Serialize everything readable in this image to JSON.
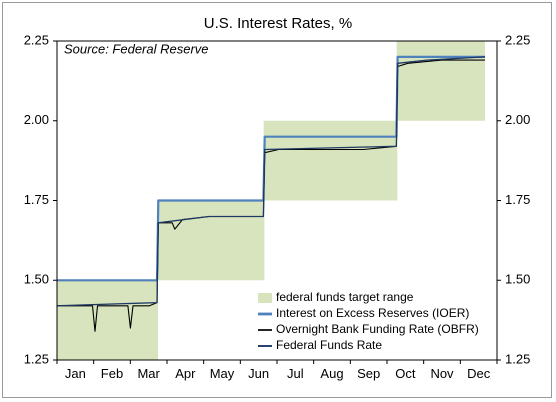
{
  "chart_data": {
    "type": "line",
    "title": "U.S. Interest Rates, %",
    "annotation": "Source: Federal Reserve",
    "xlabel": "",
    "ylabel": "",
    "ylim": [
      1.25,
      2.25
    ],
    "y_ticks": [
      "1.25",
      "1.50",
      "1.75",
      "2.00",
      "2.25"
    ],
    "x_ticks": [
      "Jan",
      "Feb",
      "Mar",
      "Apr",
      "May",
      "Jun",
      "Jul",
      "Aug",
      "Sep",
      "Oct",
      "Nov",
      "Dec"
    ],
    "grid": false,
    "legend_position": "bottom-right",
    "colors": {
      "target_range": "#d7e4bd",
      "ioer": "#4f81bd",
      "obfr": "#000000",
      "effr": "#1f3864"
    },
    "target_range": [
      {
        "start": "Jan",
        "end": "Mar 21",
        "lower": 1.25,
        "upper": 1.5
      },
      {
        "start": "Mar 22",
        "end": "Jun 13",
        "lower": 1.5,
        "upper": 1.75
      },
      {
        "start": "Jun 14",
        "end": "Sep 26",
        "lower": 1.75,
        "upper": 2.0
      },
      {
        "start": "Sep 27",
        "end": "Dec",
        "lower": 2.0,
        "upper": 2.25
      }
    ],
    "series": [
      {
        "name": "federal funds target range",
        "kind": "band"
      },
      {
        "name": "Interest on Excess Reserves (IOER)",
        "x": [
          "Jan 1",
          "Mar 21",
          "Mar 22",
          "Jun 13",
          "Jun 14",
          "Sep 26",
          "Sep 27",
          "Dec 5"
        ],
        "values": [
          1.5,
          1.5,
          1.75,
          1.75,
          1.95,
          1.95,
          2.2,
          2.2
        ]
      },
      {
        "name": "Overnight Bank Funding Rate (OBFR)",
        "x": [
          "Jan 1",
          "Jan 29",
          "Jan 31",
          "Feb 2",
          "Feb 26",
          "Feb 28",
          "Mar 2",
          "Mar 15",
          "Mar 21",
          "Mar 22",
          "Apr 2",
          "Apr 4",
          "Apr 10",
          "May 1",
          "Jun 13",
          "Jun 14",
          "Jun 25",
          "Jul 2",
          "Aug 1",
          "Aug 31",
          "Sep 26",
          "Sep 27",
          "Oct 5",
          "Nov 1",
          "Dec 5"
        ],
        "values": [
          1.42,
          1.42,
          1.34,
          1.42,
          1.42,
          1.35,
          1.42,
          1.42,
          1.43,
          1.68,
          1.68,
          1.66,
          1.69,
          1.7,
          1.7,
          1.9,
          1.91,
          1.91,
          1.91,
          1.91,
          1.92,
          2.17,
          2.18,
          2.19,
          2.19
        ]
      },
      {
        "name": "Federal Funds Rate",
        "x": [
          "Jan 1",
          "Mar 21",
          "Mar 22",
          "May 1",
          "Jun 13",
          "Jun 14",
          "Sep 26",
          "Sep 27",
          "Oct 20",
          "Dec 5"
        ],
        "values": [
          1.42,
          1.43,
          1.68,
          1.7,
          1.7,
          1.91,
          1.92,
          2.18,
          2.19,
          2.2
        ]
      }
    ]
  }
}
